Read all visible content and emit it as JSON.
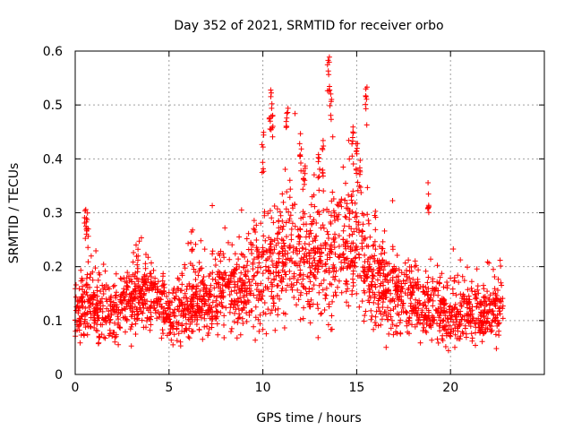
{
  "chart_data": {
    "type": "scatter",
    "title": "Day 352 of 2021, SRMTID for receiver orbo",
    "xlabel": "GPS time / hours",
    "ylabel": "SRMTID / TECUs",
    "xlim": [
      0,
      25
    ],
    "ylim": [
      0,
      0.6
    ],
    "x_ticks": [
      "0",
      "5",
      "10",
      "15",
      "20"
    ],
    "y_ticks": [
      "0",
      "0.1",
      "0.2",
      "0.3",
      "0.4",
      "0.5",
      "0.6"
    ],
    "grid": true,
    "marker": "+",
    "series": [
      {
        "name": "SRMTID",
        "color": "#ff0000",
        "baseline_profile": {
          "x": [
            0,
            1,
            2,
            3,
            4,
            5,
            6,
            7,
            8,
            9,
            10,
            11,
            12,
            13,
            14,
            15,
            16,
            17,
            18,
            19,
            20,
            21,
            22,
            22.8
          ],
          "y": [
            0.12,
            0.13,
            0.11,
            0.14,
            0.15,
            0.11,
            0.12,
            0.14,
            0.15,
            0.16,
            0.2,
            0.22,
            0.23,
            0.2,
            0.24,
            0.23,
            0.18,
            0.15,
            0.14,
            0.12,
            0.11,
            0.12,
            0.11,
            0.11
          ]
        },
        "peaks": {
          "x": [
            0.55,
            0.65,
            3.3,
            6.2,
            10.0,
            10.4,
            10.5,
            11.3,
            12.0,
            12.2,
            13.0,
            13.2,
            13.5,
            13.6,
            14.8,
            15.0,
            15.2,
            15.5,
            18.8
          ],
          "y": [
            0.32,
            0.3,
            0.25,
            0.28,
            0.45,
            0.53,
            0.52,
            0.5,
            0.45,
            0.39,
            0.42,
            0.44,
            0.59,
            0.55,
            0.46,
            0.44,
            0.4,
            0.54,
            0.36
          ]
        }
      }
    ]
  }
}
